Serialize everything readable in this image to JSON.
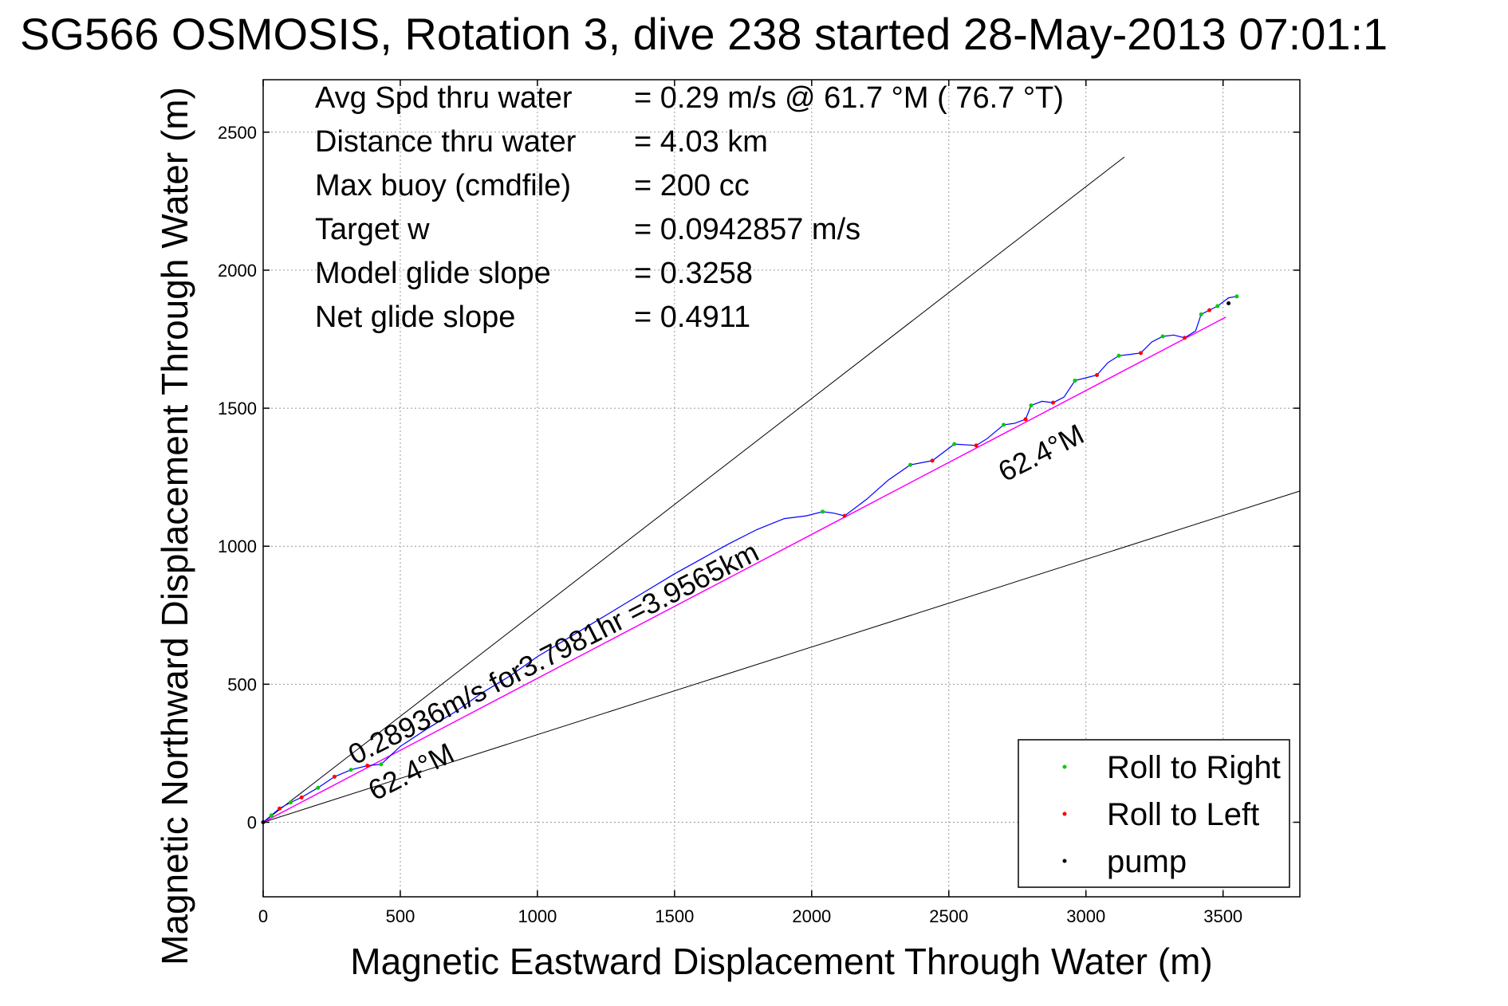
{
  "title": "SG566 OSMOSIS, Rotation 3, dive 238 started 28-May-2013 07:01:1",
  "chart_data": {
    "type": "line",
    "xlabel": "Magnetic Eastward Displacement Through Water (m)",
    "ylabel": "Magnetic Northward Displacement Through Water (m)",
    "xlim": [
      0,
      3780
    ],
    "ylim": [
      -270,
      2690
    ],
    "xticks": [
      0,
      500,
      1000,
      1500,
      2000,
      2500,
      3000,
      3500
    ],
    "yticks": [
      0,
      500,
      1000,
      1500,
      2000,
      2500
    ],
    "grid": true,
    "legend_position": "bottom-right",
    "info": [
      {
        "label": "Avg Spd thru water",
        "value": "=  0.29 m/s @  61.7 °M ( 76.7 °T)"
      },
      {
        "label": "Distance thru water",
        "value": "=  4.03 km"
      },
      {
        "label": "Max buoy (cmdfile)",
        "value": "= 200 cc"
      },
      {
        "label": "Target w",
        "value": "= 0.0942857 m/s"
      },
      {
        "label": "Model glide slope",
        "value": "= 0.3258"
      },
      {
        "label": "Net glide slope",
        "value": "= 0.4911"
      }
    ],
    "annotations": {
      "speed": "0.28936m/s for3.7981hr =3.9565km",
      "heading_lower": "62.4°M",
      "heading_upper": "62.4°M"
    },
    "envelope_lines": [
      {
        "x": [
          0,
          3140
        ],
        "y": [
          0,
          2410
        ]
      },
      {
        "x": [
          0,
          3780
        ],
        "y": [
          0,
          1200
        ]
      }
    ],
    "net_line": {
      "x": [
        0,
        3510
      ],
      "y": [
        0,
        1830
      ]
    },
    "track": {
      "color": "#0000ff",
      "x": [
        0,
        30,
        60,
        100,
        140,
        200,
        260,
        320,
        380,
        430,
        500,
        600,
        700,
        800,
        900,
        1000,
        1100,
        1200,
        1300,
        1400,
        1500,
        1600,
        1700,
        1800,
        1900,
        1980,
        2040,
        2080,
        2120,
        2200,
        2280,
        2360,
        2440,
        2520,
        2600,
        2640,
        2700,
        2740,
        2780,
        2800,
        2840,
        2880,
        2920,
        2960,
        3000,
        3040,
        3080,
        3120,
        3160,
        3200,
        3240,
        3280,
        3320,
        3360,
        3400,
        3420,
        3450,
        3480,
        3520,
        3550
      ],
      "y": [
        0,
        25,
        50,
        72,
        90,
        125,
        165,
        190,
        205,
        210,
        275,
        340,
        400,
        470,
        530,
        600,
        660,
        720,
        780,
        840,
        900,
        955,
        1010,
        1060,
        1100,
        1110,
        1125,
        1120,
        1110,
        1170,
        1240,
        1295,
        1310,
        1370,
        1365,
        1390,
        1440,
        1445,
        1460,
        1510,
        1525,
        1520,
        1540,
        1600,
        1610,
        1620,
        1665,
        1690,
        1695,
        1700,
        1740,
        1760,
        1765,
        1755,
        1780,
        1840,
        1855,
        1870,
        1900,
        1905
      ]
    },
    "series": [
      {
        "name": "Roll to Right",
        "color": "#00cc00",
        "x": [
          30,
          100,
          200,
          320,
          430,
          2040,
          2360,
          2520,
          2700,
          2800,
          2960,
          3120,
          3280,
          3420,
          3480,
          3550
        ],
        "y": [
          25,
          72,
          125,
          190,
          210,
          1125,
          1295,
          1370,
          1440,
          1510,
          1600,
          1690,
          1760,
          1840,
          1870,
          1905
        ]
      },
      {
        "name": "Roll to Left",
        "color": "#ff0000",
        "x": [
          60,
          140,
          260,
          380,
          2120,
          2440,
          2600,
          2780,
          2880,
          3040,
          3200,
          3360,
          3450
        ],
        "y": [
          50,
          90,
          165,
          205,
          1110,
          1310,
          1365,
          1460,
          1520,
          1620,
          1700,
          1755,
          1855
        ]
      },
      {
        "name": "pump",
        "color": "#000000",
        "x": [
          0,
          3520
        ],
        "y": [
          0,
          1880
        ]
      }
    ]
  }
}
